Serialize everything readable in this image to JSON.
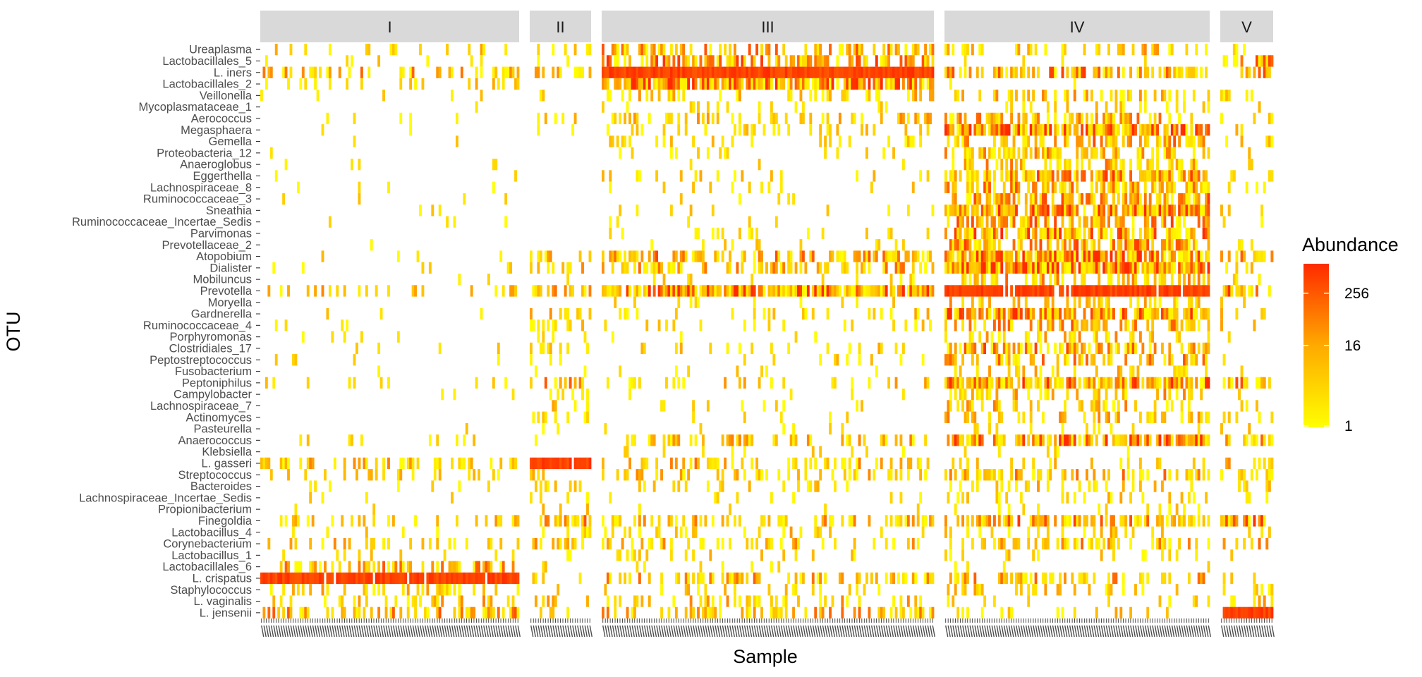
{
  "chart_data": {
    "type": "heatmap",
    "title": "",
    "xlabel": "Sample",
    "ylabel": "OTU",
    "facets": [
      {
        "label": "I",
        "samples": 106
      },
      {
        "label": "II",
        "samples": 25
      },
      {
        "label": "III",
        "samples": 136
      },
      {
        "label": "IV",
        "samples": 109
      },
      {
        "label": "V",
        "samples": 21
      }
    ],
    "otus": [
      "Ureaplasma",
      "Lactobacillales_5",
      "L. iners",
      "Lactobacillales_2",
      "Veillonella",
      "Mycoplasmataceae_1",
      "Aerococcus",
      "Megasphaera",
      "Gemella",
      "Proteobacteria_12",
      "Anaeroglobus",
      "Eggerthella",
      "Lachnospiraceae_8",
      "Ruminococcaceae_3",
      "Sneathia",
      "Ruminococcaceae_Incertae_Sedis",
      "Parvimonas",
      "Prevotellaceae_2",
      "Atopobium",
      "Dialister",
      "Mobiluncus",
      "Prevotella",
      "Moryella",
      "Gardnerella",
      "Ruminococcaceae_4",
      "Porphyromonas",
      "Clostridiales_17",
      "Peptostreptococcus",
      "Fusobacterium",
      "Peptoniphilus",
      "Campylobacter",
      "Lachnospiraceae_7",
      "Actinomyces",
      "Pasteurella",
      "Anaerococcus",
      "Klebsiella",
      "L. gasseri",
      "Streptococcus",
      "Bacteroides",
      "Lachnospiraceae_Incertae_Sedis",
      "Propionibacterium",
      "Finegoldia",
      "Lactobacillus_4",
      "Corynebacterium",
      "Lactobacillus_1",
      "Lactobacillales_6",
      "L. crispatus",
      "Staphylococcus",
      "L. vaginalis",
      "L. jensenii"
    ],
    "abundance_profile": {
      "I": [
        0.2,
        0.1,
        0.4,
        0.15,
        0.03,
        0.01,
        0.03,
        0.02,
        0.02,
        0.01,
        0.02,
        0.03,
        0.03,
        0.02,
        0.02,
        0.02,
        0.01,
        0.01,
        0.03,
        0.05,
        0.01,
        0.25,
        0.01,
        0.03,
        0.03,
        0.02,
        0.05,
        0.04,
        0.01,
        0.08,
        0.04,
        0.02,
        0.02,
        0.01,
        0.1,
        0.0,
        0.3,
        0.15,
        0.05,
        0.05,
        0.02,
        0.2,
        0.05,
        0.25,
        0.05,
        0.5,
        0.98,
        0.2,
        0.3,
        0.5
      ],
      "II": [
        0.1,
        0.05,
        0.25,
        0.02,
        0.02,
        0.0,
        0.15,
        0.05,
        0.02,
        0.0,
        0.0,
        0.02,
        0.0,
        0.0,
        0.0,
        0.0,
        0.05,
        0.0,
        0.35,
        0.45,
        0.1,
        0.55,
        0.05,
        0.3,
        0.15,
        0.1,
        0.2,
        0.1,
        0.05,
        0.5,
        0.2,
        0.15,
        0.25,
        0.1,
        0.05,
        0.0,
        0.98,
        0.15,
        0.2,
        0.1,
        0.1,
        0.5,
        0.2,
        0.4,
        0.15,
        0.1,
        0.1,
        0.1,
        0.3,
        0.15
      ],
      "III": [
        0.5,
        0.6,
        1.0,
        0.85,
        0.25,
        0.05,
        0.3,
        0.2,
        0.15,
        0.05,
        0.05,
        0.12,
        0.08,
        0.08,
        0.08,
        0.03,
        0.1,
        0.04,
        0.5,
        0.4,
        0.08,
        0.85,
        0.05,
        0.15,
        0.1,
        0.05,
        0.12,
        0.08,
        0.03,
        0.2,
        0.05,
        0.04,
        0.03,
        0.02,
        0.3,
        0.05,
        0.35,
        0.25,
        0.1,
        0.05,
        0.03,
        0.35,
        0.2,
        0.3,
        0.15,
        0.05,
        0.4,
        0.15,
        0.3,
        0.4
      ],
      "IV": [
        0.25,
        0.05,
        0.55,
        0.05,
        0.3,
        0.1,
        0.4,
        0.75,
        0.5,
        0.4,
        0.4,
        0.7,
        0.5,
        0.65,
        0.8,
        0.55,
        0.7,
        0.55,
        0.9,
        0.9,
        0.4,
        0.92,
        0.3,
        0.7,
        0.5,
        0.3,
        0.55,
        0.45,
        0.2,
        0.8,
        0.35,
        0.3,
        0.3,
        0.1,
        0.75,
        0.05,
        0.15,
        0.45,
        0.25,
        0.15,
        0.1,
        0.6,
        0.2,
        0.4,
        0.1,
        0.05,
        0.4,
        0.2,
        0.1,
        0.15
      ],
      "V": [
        0.15,
        0.6,
        0.5,
        0.1,
        0.15,
        0.05,
        0.1,
        0.15,
        0.15,
        0.05,
        0.05,
        0.1,
        0.1,
        0.1,
        0.1,
        0.05,
        0.05,
        0.05,
        0.4,
        0.4,
        0.1,
        0.6,
        0.05,
        0.2,
        0.15,
        0.05,
        0.15,
        0.1,
        0.05,
        0.5,
        0.05,
        0.05,
        0.1,
        0.1,
        0.4,
        0.0,
        0.4,
        0.5,
        0.1,
        0.1,
        0.05,
        0.6,
        0.15,
        0.4,
        0.1,
        0.1,
        0.1,
        0.15,
        0.3,
        0.98
      ]
    },
    "dominant_blocks": [
      {
        "facet": "I",
        "otu": "L. crispatus",
        "level": 0.98
      },
      {
        "facet": "II",
        "otu": "L. gasseri",
        "level": 0.98
      },
      {
        "facet": "III",
        "otu": "L. iners",
        "level": 1.0
      },
      {
        "facet": "IV",
        "otu": "Prevotella",
        "level": 0.92
      },
      {
        "facet": "V",
        "otu": "L. jensenii",
        "level": 0.98
      }
    ],
    "legend": {
      "title": "Abundance",
      "scale": "log",
      "ticks": [
        "256",
        "16",
        "1"
      ],
      "low_color": "#ffff00",
      "high_color": "#ff2a00",
      "position": "right"
    },
    "grid": false
  }
}
